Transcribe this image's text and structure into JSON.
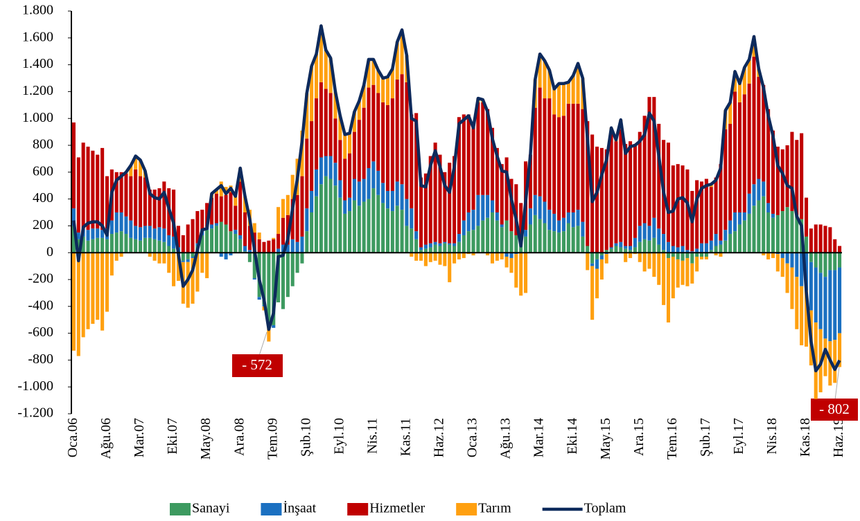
{
  "chart_data": {
    "type": "bar",
    "stacked": true,
    "categories": [
      "Oca.06",
      null,
      null,
      null,
      null,
      null,
      null,
      "Ağu.06",
      null,
      null,
      null,
      null,
      null,
      null,
      "Mar.07",
      null,
      null,
      null,
      null,
      null,
      null,
      "Eki.07",
      null,
      null,
      null,
      null,
      null,
      null,
      "May.08",
      null,
      null,
      null,
      null,
      null,
      null,
      "Ara.08",
      null,
      null,
      null,
      null,
      null,
      null,
      "Tem.09",
      null,
      null,
      null,
      null,
      null,
      null,
      "Şub.10",
      null,
      null,
      null,
      null,
      null,
      null,
      "Eyl.10",
      null,
      null,
      null,
      null,
      null,
      null,
      "Nis.11",
      null,
      null,
      null,
      null,
      null,
      null,
      "Kas.11",
      null,
      null,
      null,
      null,
      null,
      null,
      "Haz.12",
      null,
      null,
      null,
      null,
      null,
      null,
      "Oca.13",
      null,
      null,
      null,
      null,
      null,
      null,
      "Ağu.13",
      null,
      null,
      null,
      null,
      null,
      null,
      "Mar.14",
      null,
      null,
      null,
      null,
      null,
      null,
      "Eki.14",
      null,
      null,
      null,
      null,
      null,
      null,
      "May.15",
      null,
      null,
      null,
      null,
      null,
      null,
      "Ara.15",
      null,
      null,
      null,
      null,
      null,
      null,
      "Tem.16",
      null,
      null,
      null,
      null,
      null,
      null,
      "Şub.17",
      null,
      null,
      null,
      null,
      null,
      null,
      "Eyl.17",
      null,
      null,
      null,
      null,
      null,
      null,
      "Nis.18",
      null,
      null,
      null,
      null,
      null,
      null,
      "Kas.18",
      null,
      null,
      null,
      null,
      null,
      null,
      "Haz.19"
    ],
    "series": [
      {
        "name": "Sanayi",
        "type": "bar",
        "color": "#3d9a60",
        "values": [
          200,
          100,
          120,
          90,
          100,
          110,
          110,
          100,
          140,
          150,
          160,
          140,
          110,
          100,
          90,
          110,
          110,
          100,
          90,
          80,
          50,
          30,
          -10,
          -60,
          -50,
          -30,
          50,
          130,
          170,
          180,
          200,
          230,
          210,
          160,
          140,
          100,
          10,
          -70,
          -190,
          -330,
          -390,
          -540,
          -540,
          -370,
          -420,
          -330,
          -250,
          -150,
          -80,
          160,
          300,
          420,
          510,
          570,
          550,
          500,
          410,
          290,
          310,
          390,
          350,
          380,
          400,
          480,
          430,
          370,
          330,
          310,
          350,
          320,
          200,
          180,
          100,
          20,
          30,
          40,
          60,
          50,
          70,
          60,
          50,
          80,
          130,
          160,
          170,
          200,
          240,
          260,
          300,
          240,
          190,
          240,
          160,
          130,
          90,
          120,
          210,
          280,
          250,
          220,
          170,
          160,
          150,
          160,
          220,
          190,
          200,
          120,
          50,
          -80,
          -50,
          -20,
          20,
          30,
          50,
          40,
          30,
          20,
          40,
          80,
          100,
          90,
          110,
          60,
          20,
          -40,
          -30,
          -50,
          -60,
          -40,
          -80,
          -30,
          -30,
          -30,
          20,
          50,
          60,
          90,
          140,
          160,
          210,
          240,
          290,
          350,
          390,
          420,
          300,
          260,
          280,
          310,
          340,
          310,
          280,
          250,
          120,
          -70,
          -110,
          -150,
          -180,
          -130,
          -130,
          -110
        ]
      },
      {
        "name": "İnşaat",
        "type": "bar",
        "color": "#1b70c1",
        "values": [
          130,
          50,
          60,
          80,
          80,
          70,
          60,
          80,
          100,
          150,
          140,
          130,
          130,
          100,
          100,
          90,
          90,
          80,
          100,
          100,
          80,
          90,
          40,
          -10,
          -20,
          -10,
          20,
          40,
          20,
          30,
          20,
          -30,
          -50,
          -20,
          30,
          30,
          40,
          20,
          -10,
          -20,
          -10,
          -10,
          -20,
          30,
          60,
          60,
          100,
          80,
          120,
          170,
          160,
          200,
          200,
          150,
          170,
          170,
          130,
          100,
          100,
          160,
          180,
          170,
          230,
          200,
          180,
          150,
          130,
          150,
          180,
          190,
          200,
          150,
          60,
          20,
          30,
          30,
          20,
          20,
          10,
          10,
          20,
          60,
          110,
          140,
          150,
          230,
          190,
          170,
          90,
          60,
          20,
          -30,
          -40,
          -10,
          0,
          50,
          120,
          150,
          170,
          160,
          150,
          130,
          90,
          100,
          80,
          110,
          120,
          110,
          0,
          -20,
          -70,
          -30,
          -10,
          10,
          20,
          40,
          20,
          30,
          70,
          120,
          120,
          110,
          150,
          120,
          120,
          80,
          50,
          40,
          50,
          20,
          10,
          30,
          70,
          70,
          70,
          90,
          30,
          80,
          100,
          140,
          90,
          60,
          150,
          160,
          160,
          110,
          70,
          30,
          -10,
          -40,
          -80,
          -110,
          -180,
          -250,
          -280,
          -360,
          -410,
          -420,
          -460,
          -530,
          -520,
          -490
        ]
      },
      {
        "name": "Hizmetler",
        "type": "bar",
        "color": "#c00000",
        "values": [
          640,
          560,
          640,
          620,
          580,
          550,
          610,
          390,
          380,
          300,
          300,
          320,
          330,
          420,
          380,
          360,
          270,
          290,
          290,
          350,
          350,
          350,
          160,
          130,
          210,
          250,
          240,
          150,
          180,
          200,
          220,
          190,
          220,
          290,
          180,
          400,
          250,
          180,
          150,
          100,
          80,
          90,
          100,
          110,
          200,
          220,
          300,
          350,
          450,
          520,
          520,
          530,
          560,
          500,
          470,
          330,
          300,
          310,
          330,
          350,
          460,
          530,
          600,
          570,
          580,
          600,
          640,
          690,
          760,
          820,
          870,
          700,
          880,
          520,
          530,
          650,
          740,
          660,
          520,
          600,
          650,
          870,
          790,
          730,
          630,
          690,
          690,
          640,
          540,
          480,
          450,
          470,
          390,
          380,
          280,
          510,
          400,
          650,
          810,
          770,
          830,
          740,
          770,
          760,
          810,
          810,
          790,
          840,
          930,
          880,
          790,
          780,
          750,
          870,
          760,
          840,
          760,
          780,
          700,
          700,
          800,
          960,
          900,
          780,
          700,
          740,
          600,
          620,
          600,
          600,
          450,
          510,
          460,
          480,
          400,
          420,
          570,
          750,
          720,
          900,
          820,
          880,
          820,
          950,
          760,
          720,
          700,
          620,
          510,
          460,
          460,
          590,
          560,
          640,
          290,
          180,
          210,
          210,
          200,
          190,
          100,
          50
        ]
      },
      {
        "name": "Tarım",
        "type": "bar",
        "color": "#ffa010",
        "values": [
          -730,
          -770,
          -630,
          -570,
          -530,
          -500,
          -580,
          -440,
          -170,
          -60,
          -30,
          10,
          80,
          100,
          120,
          50,
          -30,
          -60,
          -80,
          -80,
          -150,
          -250,
          -200,
          -310,
          -340,
          -340,
          -290,
          -150,
          -190,
          30,
          30,
          110,
          60,
          50,
          70,
          100,
          120,
          120,
          70,
          50,
          -30,
          -112,
          10,
          200,
          140,
          150,
          180,
          270,
          340,
          340,
          410,
          330,
          420,
          290,
          260,
          200,
          180,
          180,
          150,
          150,
          140,
          170,
          210,
          190,
          170,
          180,
          210,
          220,
          280,
          330,
          200,
          -30,
          -60,
          -60,
          -100,
          -70,
          -60,
          -90,
          -100,
          -220,
          -80,
          -50,
          -40,
          -10,
          -20,
          30,
          20,
          -20,
          -80,
          -60,
          -50,
          -80,
          -110,
          -250,
          -320,
          -300,
          0,
          210,
          250,
          280,
          210,
          190,
          250,
          240,
          160,
          210,
          300,
          230,
          -130,
          -400,
          -220,
          -150,
          -70,
          20,
          10,
          70,
          -70,
          -40,
          -10,
          -70,
          -140,
          -120,
          -180,
          -240,
          -390,
          -480,
          -310,
          -210,
          -180,
          -210,
          -150,
          -110,
          -20,
          -20,
          20,
          -20,
          -30,
          140,
          160,
          150,
          140,
          200,
          180,
          150,
          60,
          -20,
          -50,
          -40,
          -130,
          -140,
          -220,
          -310,
          -390,
          -440,
          -420,
          -410,
          -570,
          -470,
          -280,
          -330,
          -320,
          -252
        ]
      },
      {
        "name": "Toplam",
        "type": "line",
        "color": "#0d2a5c",
        "values": [
          240,
          -60,
          190,
          220,
          230,
          230,
          200,
          130,
          450,
          540,
          570,
          600,
          650,
          720,
          690,
          610,
          440,
          410,
          400,
          450,
          330,
          220,
          -10,
          -250,
          -200,
          -130,
          20,
          170,
          180,
          440,
          470,
          500,
          440,
          480,
          420,
          630,
          420,
          250,
          20,
          -200,
          -350,
          -572,
          -450,
          -30,
          -20,
          100,
          330,
          550,
          830,
          1190,
          1390,
          1480,
          1690,
          1510,
          1450,
          1200,
          1020,
          880,
          890,
          1050,
          1130,
          1250,
          1440,
          1440,
          1360,
          1300,
          1310,
          1370,
          1570,
          1660,
          1470,
          1000,
          980,
          500,
          490,
          650,
          760,
          640,
          500,
          450,
          640,
          960,
          990,
          1020,
          930,
          1150,
          1140,
          1050,
          850,
          720,
          610,
          600,
          400,
          250,
          50,
          380,
          730,
          1290,
          1480,
          1430,
          1360,
          1220,
          1260,
          1260,
          1270,
          1320,
          1410,
          1300,
          850,
          380,
          450,
          580,
          690,
          930,
          840,
          990,
          740,
          790,
          800,
          830,
          880,
          1040,
          980,
          720,
          450,
          300,
          310,
          400,
          410,
          370,
          230,
          400,
          480,
          500,
          510,
          540,
          630,
          1060,
          1120,
          1350,
          1260,
          1380,
          1440,
          1610,
          1370,
          1230,
          1020,
          870,
          650,
          590,
          500,
          480,
          270,
          200,
          -290,
          -660,
          -880,
          -830,
          -720,
          -800,
          -870,
          -802
        ]
      }
    ],
    "ylim": [
      -1200,
      1800
    ],
    "yticks": [
      {
        "value": -1200,
        "label": "-1.200"
      },
      {
        "value": -1000,
        "label": "-1.000"
      },
      -800,
      -600,
      -400,
      -200,
      0,
      200,
      400,
      600,
      800,
      {
        "value": 1000,
        "label": "1.000"
      },
      {
        "value": 1200,
        "label": "1.200"
      },
      {
        "value": 1400,
        "label": "1.400"
      },
      {
        "value": 1600,
        "label": "1.600"
      },
      {
        "value": 1800,
        "label": "1.800"
      }
    ],
    "grid": false,
    "legend": "bottom",
    "annotations": [
      {
        "text": "- 572"
      },
      {
        "text": "- 802"
      }
    ]
  }
}
